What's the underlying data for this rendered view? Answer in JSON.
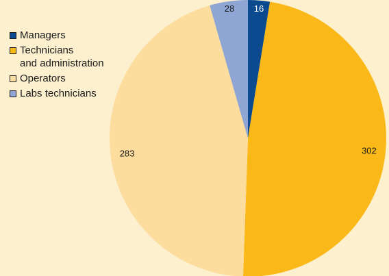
{
  "chart_data": {
    "type": "pie",
    "legend_position": "top-left",
    "slices": [
      {
        "label": "Managers",
        "value": 16,
        "color": "#0b4a8f",
        "label_color": "#ffffff"
      },
      {
        "label": "Technicians\nand administration",
        "value": 302,
        "color": "#fbb919",
        "label_color": "#1a1a1a"
      },
      {
        "label": "Operators",
        "value": 283,
        "color": "#fddd9e",
        "label_color": "#1a1a1a"
      },
      {
        "label": "Labs technicians",
        "value": 28,
        "color": "#8fa6d5",
        "label_color": "#1a1a1a"
      }
    ]
  }
}
